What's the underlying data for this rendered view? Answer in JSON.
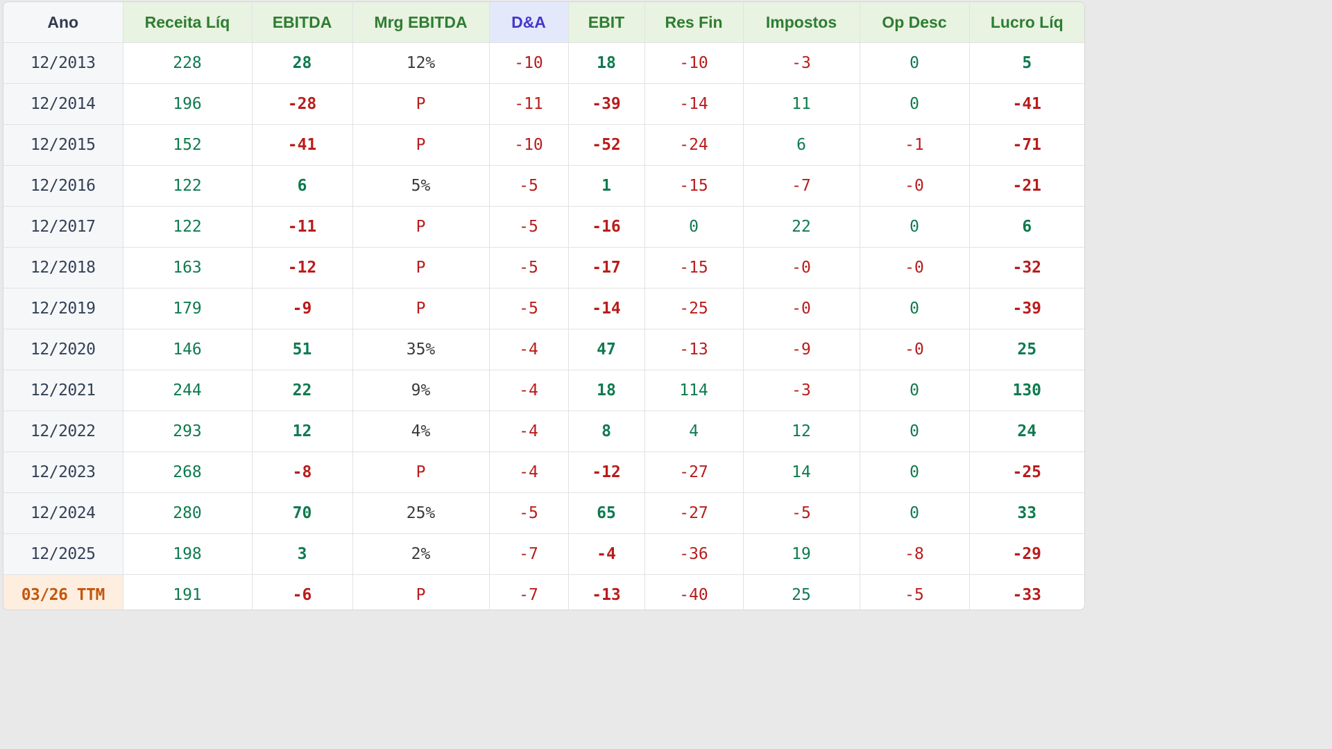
{
  "colors": {
    "positive": "#0f7a4f",
    "negative": "#b91c1c",
    "neutral": "#3b3b3b",
    "header_green": "#2e7d32",
    "header_green_bg": "#e8f3e1",
    "header_blue": "#4338ca",
    "header_blue_bg": "#e4e8fb",
    "ttm_text": "#c2570c",
    "ttm_bg": "#fdeee0"
  },
  "table": {
    "headers": [
      "Ano",
      "Receita Líq",
      "EBITDA",
      "Mrg EBITDA",
      "D&A",
      "EBIT",
      "Res Fin",
      "Impostos",
      "Op Desc",
      "Lucro Líq"
    ],
    "rows": [
      {
        "year": "12/2013",
        "values": [
          "228",
          "28",
          "12%",
          "-10",
          "18",
          "-10",
          "-3",
          "0",
          "5"
        ]
      },
      {
        "year": "12/2014",
        "values": [
          "196",
          "-28",
          "P",
          "-11",
          "-39",
          "-14",
          "11",
          "0",
          "-41"
        ]
      },
      {
        "year": "12/2015",
        "values": [
          "152",
          "-41",
          "P",
          "-10",
          "-52",
          "-24",
          "6",
          "-1",
          "-71"
        ]
      },
      {
        "year": "12/2016",
        "values": [
          "122",
          "6",
          "5%",
          "-5",
          "1",
          "-15",
          "-7",
          "-0",
          "-21"
        ]
      },
      {
        "year": "12/2017",
        "values": [
          "122",
          "-11",
          "P",
          "-5",
          "-16",
          "0",
          "22",
          "0",
          "6"
        ]
      },
      {
        "year": "12/2018",
        "values": [
          "163",
          "-12",
          "P",
          "-5",
          "-17",
          "-15",
          "-0",
          "-0",
          "-32"
        ]
      },
      {
        "year": "12/2019",
        "values": [
          "179",
          "-9",
          "P",
          "-5",
          "-14",
          "-25",
          "-0",
          "0",
          "-39"
        ]
      },
      {
        "year": "12/2020",
        "values": [
          "146",
          "51",
          "35%",
          "-4",
          "47",
          "-13",
          "-9",
          "-0",
          "25"
        ]
      },
      {
        "year": "12/2021",
        "values": [
          "244",
          "22",
          "9%",
          "-4",
          "18",
          "114",
          "-3",
          "0",
          "130"
        ]
      },
      {
        "year": "12/2022",
        "values": [
          "293",
          "12",
          "4%",
          "-4",
          "8",
          "4",
          "12",
          "0",
          "24"
        ]
      },
      {
        "year": "12/2023",
        "values": [
          "268",
          "-8",
          "P",
          "-4",
          "-12",
          "-27",
          "14",
          "0",
          "-25"
        ]
      },
      {
        "year": "12/2024",
        "values": [
          "280",
          "70",
          "25%",
          "-5",
          "65",
          "-27",
          "-5",
          "0",
          "33"
        ]
      },
      {
        "year": "12/2025",
        "values": [
          "198",
          "3",
          "2%",
          "-7",
          "-4",
          "-36",
          "19",
          "-8",
          "-29"
        ]
      },
      {
        "year": "03/26 TTM",
        "values": [
          "191",
          "-6",
          "P",
          "-7",
          "-13",
          "-40",
          "25",
          "-5",
          "-33"
        ]
      }
    ]
  }
}
